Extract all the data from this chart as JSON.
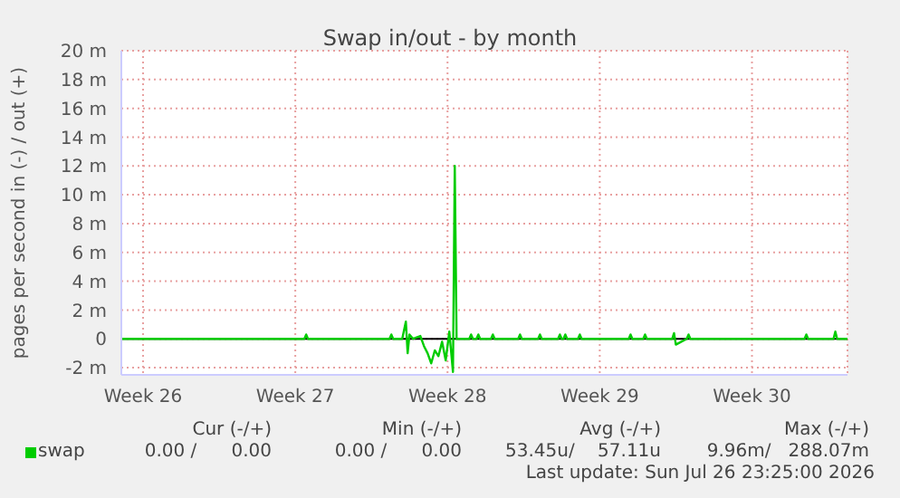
{
  "chart_data": {
    "type": "line",
    "title": "Swap in/out - by month",
    "ylabel": "pages per second in (-) / out (+)",
    "xlim": [
      "2026-06-23T14:00",
      "2026-07-26T23:25"
    ],
    "xticks": [
      {
        "value": "2026-06-24T14:00",
        "label": "Week 26"
      },
      {
        "value": "2026-07-01T14:00",
        "label": "Week 27"
      },
      {
        "value": "2026-07-08T14:00",
        "label": "Week 28"
      },
      {
        "value": "2026-07-15T14:00",
        "label": "Week 29"
      },
      {
        "value": "2026-07-22T14:00",
        "label": "Week 30"
      }
    ],
    "ylim": [
      -2.5,
      20
    ],
    "yticks": [
      {
        "value": -2,
        "label": "-2 m"
      },
      {
        "value": 0,
        "label": "0"
      },
      {
        "value": 2,
        "label": "2 m"
      },
      {
        "value": 4,
        "label": "4 m"
      },
      {
        "value": 6,
        "label": "6 m"
      },
      {
        "value": 8,
        "label": "8 m"
      },
      {
        "value": 10,
        "label": "10 m"
      },
      {
        "value": 12,
        "label": "12 m"
      },
      {
        "value": 14,
        "label": "14 m"
      },
      {
        "value": 16,
        "label": "16 m"
      },
      {
        "value": 18,
        "label": "18 m"
      },
      {
        "value": 20,
        "label": "20 m"
      }
    ],
    "series": [
      {
        "name": "swap",
        "color": "#00cc00",
        "x": [
          "2026-06-23T14:00",
          "2026-07-02T00:00",
          "2026-07-02T02:00",
          "2026-07-02T04:00",
          "2026-07-05T22:00",
          "2026-07-06T00:00",
          "2026-07-06T02:00",
          "2026-07-06T12:00",
          "2026-07-06T16:00",
          "2026-07-06T18:00",
          "2026-07-06T20:00",
          "2026-07-07T00:00",
          "2026-07-07T08:00",
          "2026-07-07T12:00",
          "2026-07-07T16:00",
          "2026-07-07T20:00",
          "2026-07-08T00:00",
          "2026-07-08T04:00",
          "2026-07-08T08:00",
          "2026-07-08T12:00",
          "2026-07-08T16:00",
          "2026-07-08T20:00",
          "2026-07-08T22:00",
          "2026-07-09T00:00",
          "2026-07-09T14:00",
          "2026-07-09T16:00",
          "2026-07-09T18:00",
          "2026-07-09T22:00",
          "2026-07-10T00:00",
          "2026-07-10T02:00",
          "2026-07-10T14:00",
          "2026-07-10T16:00",
          "2026-07-10T18:00",
          "2026-07-11T20:00",
          "2026-07-11T22:00",
          "2026-07-12T00:00",
          "2026-07-12T18:00",
          "2026-07-12T20:00",
          "2026-07-12T22:00",
          "2026-07-13T16:00",
          "2026-07-13T18:00",
          "2026-07-13T20:00",
          "2026-07-13T22:00",
          "2026-07-14T00:00",
          "2026-07-14T02:00",
          "2026-07-14T14:00",
          "2026-07-14T16:00",
          "2026-07-14T18:00",
          "2026-07-16T22:00",
          "2026-07-17T00:00",
          "2026-07-17T02:00",
          "2026-07-17T14:00",
          "2026-07-17T16:00",
          "2026-07-17T18:00",
          "2026-07-18T22:00",
          "2026-07-19T00:00",
          "2026-07-19T02:00",
          "2026-07-19T14:00",
          "2026-07-19T16:00",
          "2026-07-19T18:00",
          "2026-07-25T00:00",
          "2026-07-25T02:00",
          "2026-07-25T04:00",
          "2026-07-26T08:00",
          "2026-07-26T10:00",
          "2026-07-26T12:00",
          "2026-07-26T23:25"
        ],
        "values": [
          0,
          0,
          0.3,
          0,
          0,
          0.3,
          0,
          0,
          1.2,
          -1.0,
          0.3,
          0,
          0.2,
          -0.5,
          -1.0,
          -1.7,
          -0.8,
          -1.2,
          -0.2,
          -1.5,
          0.5,
          -2.3,
          12,
          0,
          0,
          0.3,
          0,
          0,
          0.3,
          0,
          0,
          0.3,
          0,
          0,
          0.3,
          0,
          0,
          0.3,
          0,
          0,
          0.3,
          0,
          0,
          0.3,
          0,
          0,
          0.3,
          0,
          0,
          0.3,
          0,
          0,
          0.3,
          0,
          0,
          0.4,
          -0.4,
          0,
          0.3,
          0,
          0,
          0.3,
          0,
          0,
          0.5,
          0,
          0
        ]
      }
    ],
    "ref_lines": [
      {
        "axis": "y",
        "value": 0,
        "color": "#000000"
      }
    ],
    "grid": true,
    "legend": "bottom left",
    "marker": "none",
    "line_style": "solid",
    "annotations": [
      "Cur (-/+)",
      "Min (-/+)",
      "Avg (-/+)",
      "Max (-/+)",
      "0.00 /      0.00",
      "0.00 /      0.00",
      "53.45u/    57.11u",
      "9.96m/   288.07m",
      "Last update: Sun Jul 26 23:25:00 2026"
    ]
  }
}
